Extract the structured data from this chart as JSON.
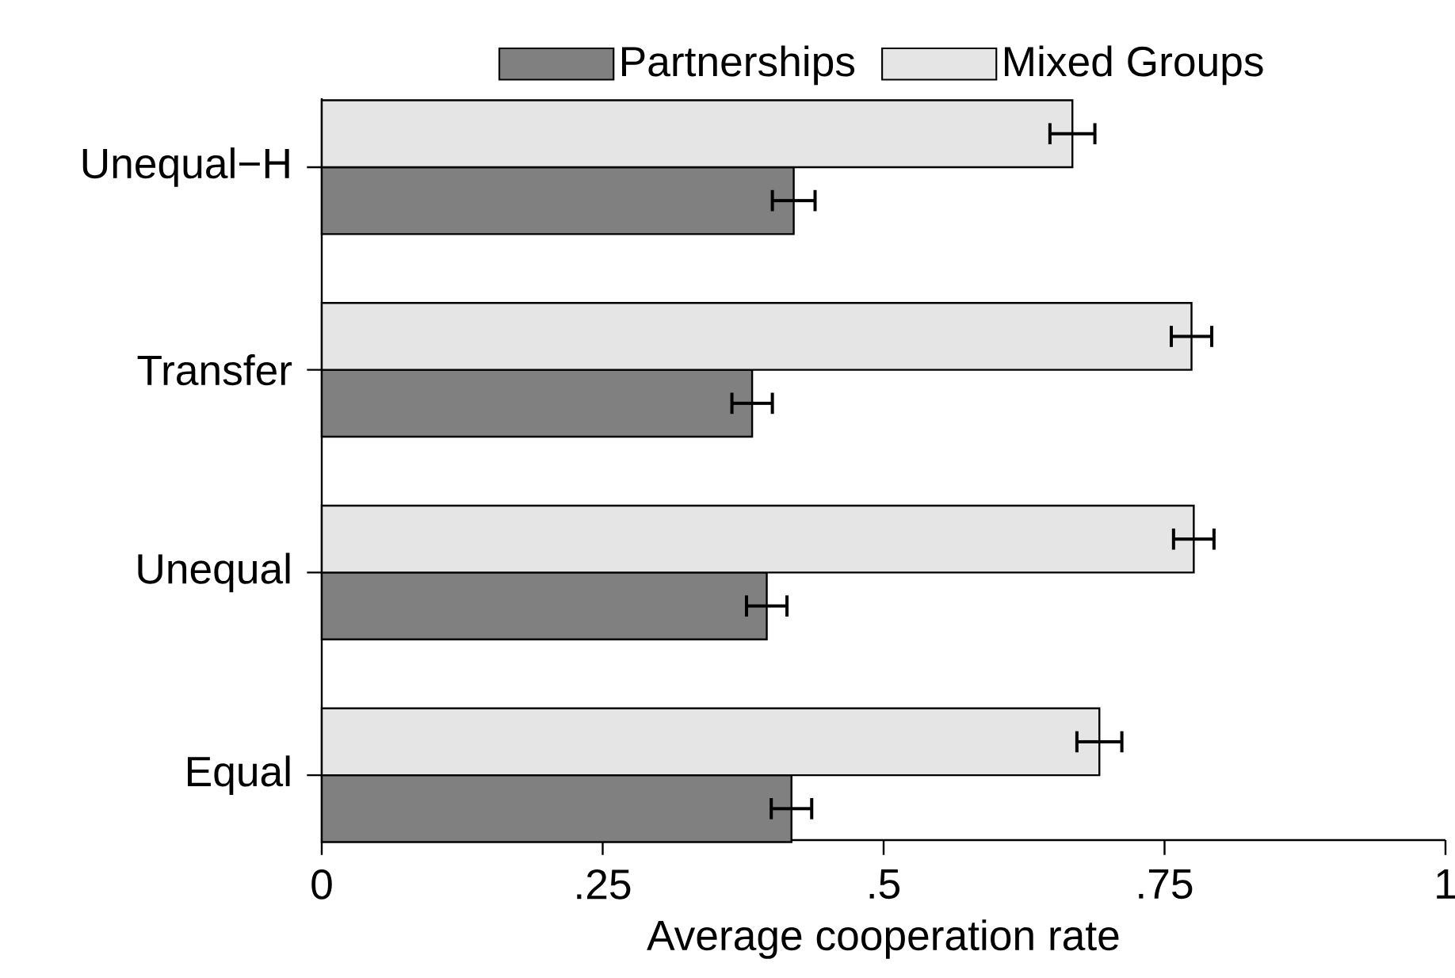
{
  "chart_data": {
    "type": "bar",
    "orientation": "horizontal",
    "categories": [
      "Unequal−H",
      "Transfer",
      "Unequal",
      "Equal"
    ],
    "series": [
      {
        "name": "Partnerships",
        "color": "#808080",
        "values": [
          0.42,
          0.383,
          0.396,
          0.418
        ],
        "errors": [
          0.019,
          0.018,
          0.018,
          0.018
        ]
      },
      {
        "name": "Mixed Groups",
        "color": "#e5e5e5",
        "values": [
          0.668,
          0.774,
          0.776,
          0.692
        ],
        "errors": [
          0.02,
          0.018,
          0.018,
          0.02
        ]
      }
    ],
    "xlabel": "Average cooperation rate",
    "xlim": [
      0,
      1
    ],
    "xticks": [
      0,
      {
        "value": 0.25,
        "label": ".25"
      },
      {
        "value": 0.5,
        "label": ".5"
      },
      {
        "value": 0.75,
        "label": ".75"
      },
      1
    ],
    "legend": "top"
  }
}
